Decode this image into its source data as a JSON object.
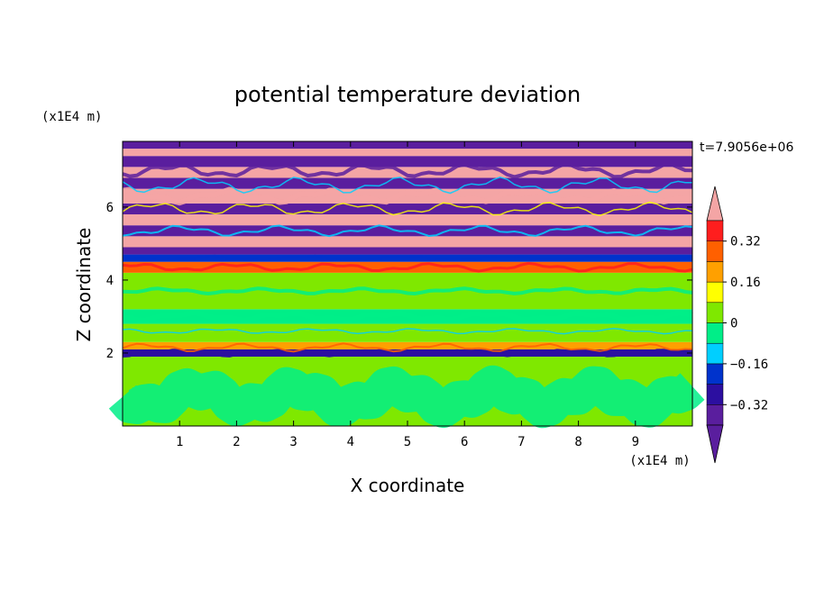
{
  "chart_data": {
    "type": "heatmap",
    "title": "potential temperature deviation",
    "xlabel": "X coordinate",
    "ylabel": "Z coordinate",
    "x_unit": "(x1E4 m)",
    "y_unit": "(x1E4 m)",
    "time_label": "t=7.9056e+06",
    "xlim": [
      0,
      10
    ],
    "ylim": [
      0,
      7.8
    ],
    "x_ticks": [
      1,
      2,
      3,
      4,
      5,
      6,
      7,
      8,
      9
    ],
    "y_ticks": [
      2,
      4,
      6
    ],
    "colorbar": {
      "levels": [
        -0.4,
        -0.32,
        -0.24,
        -0.16,
        -0.08,
        0,
        0.08,
        0.16,
        0.24,
        0.32,
        0.4
      ],
      "labels": [
        "0.32",
        "0.16",
        "0",
        "−0.16",
        "−0.32"
      ],
      "label_values": [
        0.32,
        0.16,
        0,
        -0.16,
        -0.32
      ],
      "colors": [
        "#5a1e9e",
        "#2c0fa0",
        "#0033cc",
        "#00cfff",
        "#00ee88",
        "#7fe800",
        "#ffff00",
        "#ffa000",
        "#ff6000",
        "#ff1e1e",
        "#f4a5a5"
      ],
      "extend": "both"
    },
    "layers": [
      {
        "z0": 0.0,
        "z1": 1.9,
        "value": 0.02
      },
      {
        "z0": 1.9,
        "z1": 2.1,
        "value": -0.3
      },
      {
        "z0": 2.1,
        "z1": 2.3,
        "value": 0.2
      },
      {
        "z0": 2.3,
        "z1": 2.8,
        "value": 0.03
      },
      {
        "z0": 2.8,
        "z1": 3.2,
        "value": -0.05
      },
      {
        "z0": 3.2,
        "z1": 4.2,
        "value": 0.03
      },
      {
        "z0": 4.2,
        "z1": 4.5,
        "value": 0.28
      },
      {
        "z0": 4.5,
        "z1": 4.7,
        "value": -0.2
      },
      {
        "z0": 4.7,
        "z1": 4.9,
        "value": -0.4
      },
      {
        "z0": 4.9,
        "z1": 5.2,
        "value": 0.42
      },
      {
        "z0": 5.2,
        "z1": 5.5,
        "value": -0.42
      },
      {
        "z0": 5.5,
        "z1": 5.8,
        "value": 0.42
      },
      {
        "z0": 5.8,
        "z1": 6.1,
        "value": -0.42
      },
      {
        "z0": 6.1,
        "z1": 6.5,
        "value": 0.42
      },
      {
        "z0": 6.5,
        "z1": 6.8,
        "value": -0.42
      },
      {
        "z0": 6.8,
        "z1": 7.1,
        "value": 0.42
      },
      {
        "z0": 7.1,
        "z1": 7.4,
        "value": -0.42
      },
      {
        "z0": 7.4,
        "z1": 7.6,
        "value": 0.42
      },
      {
        "z0": 7.6,
        "z1": 7.8,
        "value": -0.42
      }
    ]
  }
}
